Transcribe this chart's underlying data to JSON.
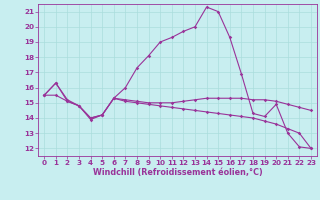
{
  "xlabel": "Windchill (Refroidissement éolien,°C)",
  "bg_color": "#c8eef0",
  "line_color": "#993399",
  "grid_color": "#aadddd",
  "xlim": [
    -0.5,
    23.5
  ],
  "ylim": [
    11.5,
    21.5
  ],
  "xticks": [
    0,
    1,
    2,
    3,
    4,
    5,
    6,
    7,
    8,
    9,
    10,
    11,
    12,
    13,
    14,
    15,
    16,
    17,
    18,
    19,
    20,
    21,
    22,
    23
  ],
  "yticks": [
    12,
    13,
    14,
    15,
    16,
    17,
    18,
    19,
    20,
    21
  ],
  "line1_x": [
    0,
    1,
    2,
    3,
    4,
    5,
    6,
    7,
    8,
    9,
    10,
    11,
    12,
    13,
    14,
    15,
    16,
    17,
    18,
    19,
    20,
    21,
    22,
    23
  ],
  "line1_y": [
    15.5,
    16.3,
    15.2,
    14.8,
    13.9,
    14.2,
    15.3,
    16.0,
    17.3,
    18.1,
    19.0,
    19.3,
    19.7,
    20.0,
    21.3,
    21.0,
    19.3,
    16.9,
    14.3,
    14.1,
    14.9,
    13.0,
    12.1,
    12.0
  ],
  "line2_x": [
    0,
    1,
    2,
    3,
    4,
    5,
    6,
    7,
    8,
    9,
    10,
    11,
    12,
    13,
    14,
    15,
    16,
    17,
    18,
    19,
    20,
    21,
    22,
    23
  ],
  "line2_y": [
    15.5,
    16.3,
    15.1,
    14.8,
    14.0,
    14.2,
    15.3,
    15.2,
    15.1,
    15.0,
    15.0,
    15.0,
    15.1,
    15.2,
    15.3,
    15.3,
    15.3,
    15.3,
    15.2,
    15.2,
    15.1,
    14.9,
    14.7,
    14.5
  ],
  "line3_x": [
    0,
    1,
    2,
    3,
    4,
    5,
    6,
    7,
    8,
    9,
    10,
    11,
    12,
    13,
    14,
    15,
    16,
    17,
    18,
    19,
    20,
    21,
    22,
    23
  ],
  "line3_y": [
    15.5,
    15.5,
    15.1,
    14.8,
    14.0,
    14.2,
    15.3,
    15.1,
    15.0,
    14.9,
    14.8,
    14.7,
    14.6,
    14.5,
    14.4,
    14.3,
    14.2,
    14.1,
    14.0,
    13.8,
    13.6,
    13.3,
    13.0,
    12.0
  ],
  "title_fontsize": 6.0,
  "axis_fontsize": 5.8,
  "tick_fontsize": 5.2
}
